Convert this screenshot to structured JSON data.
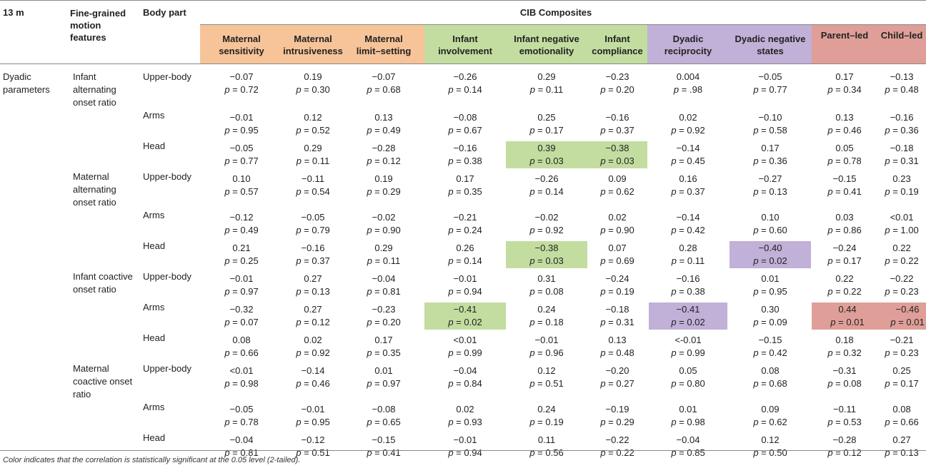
{
  "header": {
    "col_time": "13 m",
    "col_features": [
      "Fine-grained",
      "motion",
      "features"
    ],
    "col_body": "Body part",
    "group": "CIB Composites",
    "columns": [
      {
        "line1": "Maternal",
        "line2": "sensitivity",
        "color": "#f7c499"
      },
      {
        "line1": "Maternal",
        "line2": "intrusiveness",
        "color": "#f7c499"
      },
      {
        "line1": "Maternal",
        "line2": "limit–setting",
        "color": "#f7c499"
      },
      {
        "line1": "Infant",
        "line2": "involvement",
        "color": "#c3dda0"
      },
      {
        "line1": "Infant negative",
        "line2": "emotionality",
        "color": "#c3dda0"
      },
      {
        "line1": "Infant",
        "line2": "compliance",
        "color": "#c3dda0"
      },
      {
        "line1": "Dyadic",
        "line2": "reciprocity",
        "color": "#c1b0d7"
      },
      {
        "line1": "Dyadic negative",
        "line2": "states",
        "color": "#c1b0d7"
      },
      {
        "line1": "Parent–led",
        "line2": "",
        "color": "#df9f98"
      },
      {
        "line1": "Child–led",
        "line2": "",
        "color": "#df9f98"
      }
    ]
  },
  "section_label": [
    "Dyadic",
    "parameters"
  ],
  "groups": [
    {
      "label": [
        "Infant",
        "alternating",
        "onset ratio"
      ],
      "rows": [
        {
          "part": "Upper-body",
          "cells": [
            [
              "−0.07",
              "0.72"
            ],
            [
              "0.19",
              "0.30"
            ],
            [
              "−0.07",
              "0.68"
            ],
            [
              "−0.26",
              "0.14"
            ],
            [
              "0.29",
              "0.11"
            ],
            [
              "−0.23",
              "0.20"
            ],
            [
              "0.004",
              ".98"
            ],
            [
              "−0.05",
              "0.77"
            ],
            [
              "0.17",
              "0.34"
            ],
            [
              "−0.13",
              "0.48"
            ]
          ]
        },
        {
          "part": "Arms",
          "cells": [
            [
              "−0.01",
              "0.95"
            ],
            [
              "0.12",
              "0.52"
            ],
            [
              "0.13",
              "0.49"
            ],
            [
              "−0.08",
              "0.67"
            ],
            [
              "0.25",
              "0.17"
            ],
            [
              "−0.16",
              "0.37"
            ],
            [
              "0.02",
              "0.92"
            ],
            [
              "−0.10",
              "0.58"
            ],
            [
              "0.13",
              "0.46"
            ],
            [
              "−0.16",
              "0.36"
            ]
          ]
        },
        {
          "part": "Head",
          "cells": [
            [
              "−0.05",
              "0.77"
            ],
            [
              "0.29",
              "0.11"
            ],
            [
              "−0.28",
              "0.12"
            ],
            [
              "−0.16",
              "0.38"
            ],
            [
              "0.39",
              "0.03"
            ],
            [
              "−0.38",
              "0.03"
            ],
            [
              "−0.14",
              "0.45"
            ],
            [
              "0.17",
              "0.36"
            ],
            [
              "0.05",
              "0.78"
            ],
            [
              "−0.18",
              "0.31"
            ]
          ]
        }
      ]
    },
    {
      "label": [
        "Maternal",
        "alternating",
        "onset ratio"
      ],
      "rows": [
        {
          "part": "Upper-body",
          "cells": [
            [
              "0.10",
              "0.57"
            ],
            [
              "−0.11",
              "0.54"
            ],
            [
              "0.19",
              "0.29"
            ],
            [
              "0.17",
              "0.35"
            ],
            [
              "−0.26",
              "0.14"
            ],
            [
              "0.09",
              "0.62"
            ],
            [
              "0.16",
              "0.37"
            ],
            [
              "−0.27",
              "0.13"
            ],
            [
              "−0.15",
              "0.41"
            ],
            [
              "0.23",
              "0.19"
            ]
          ]
        },
        {
          "part": "Arms",
          "cells": [
            [
              "−0.12",
              "0.49"
            ],
            [
              "−0.05",
              "0.79"
            ],
            [
              "−0.02",
              "0.90"
            ],
            [
              "−0.21",
              "0.24"
            ],
            [
              "−0.02",
              "0.92"
            ],
            [
              "0.02",
              "0.90"
            ],
            [
              "−0.14",
              "0.42"
            ],
            [
              "0.10",
              "0.60"
            ],
            [
              "0.03",
              "0.86"
            ],
            [
              "<0.01",
              "1.00"
            ]
          ]
        },
        {
          "part": "Head",
          "cells": [
            [
              "0.21",
              "0.25"
            ],
            [
              "−0.16",
              "0.37"
            ],
            [
              "0.29",
              "0.11"
            ],
            [
              "0.26",
              "0.14"
            ],
            [
              "−0.38",
              "0.03"
            ],
            [
              "0.07",
              "0.69"
            ],
            [
              "0.28",
              "0.11"
            ],
            [
              "−0.40",
              "0.02"
            ],
            [
              "−0.24",
              "0.17"
            ],
            [
              "0.22",
              "0.22"
            ]
          ]
        }
      ]
    },
    {
      "label": [
        "Infant coactive",
        "onset ratio"
      ],
      "rows": [
        {
          "part": "Upper-body",
          "cells": [
            [
              "−0.01",
              "0.97"
            ],
            [
              "0.27",
              "0.13"
            ],
            [
              "−0.04",
              "0.81"
            ],
            [
              "−0.01",
              "0.94"
            ],
            [
              "0.31",
              "0.08"
            ],
            [
              "−0.24",
              "0.19"
            ],
            [
              "−0.16",
              "0.38"
            ],
            [
              "0.01",
              "0.95"
            ],
            [
              "0.22",
              "0.22"
            ],
            [
              "−0.22",
              "0.23"
            ]
          ]
        },
        {
          "part": "Arms",
          "cells": [
            [
              "−0.32",
              "0.07"
            ],
            [
              "0.27",
              "0.12"
            ],
            [
              "−0.23",
              "0.20"
            ],
            [
              "−0.41",
              "0.02"
            ],
            [
              "0.24",
              "0.18"
            ],
            [
              "−0.18",
              "0.31"
            ],
            [
              "−0.41",
              "0.02"
            ],
            [
              "0.30",
              "0.09"
            ],
            [
              "0.44",
              "0.01"
            ],
            [
              "−0.46",
              "0.01"
            ]
          ]
        },
        {
          "part": "Head",
          "cells": [
            [
              "0.08",
              "0.66"
            ],
            [
              "0.02",
              "0.92"
            ],
            [
              "0.17",
              "0.35"
            ],
            [
              "<0.01",
              "0.99"
            ],
            [
              "−0.01",
              "0.96"
            ],
            [
              "0.13",
              "0.48"
            ],
            [
              "<-0.01",
              "0.99"
            ],
            [
              "−0.15",
              "0.42"
            ],
            [
              "0.18",
              "0.32"
            ],
            [
              "−0.21",
              "0.23"
            ]
          ]
        }
      ]
    },
    {
      "label": [
        "Maternal",
        "coactive onset",
        "ratio"
      ],
      "rows": [
        {
          "part": "Upper-body",
          "cells": [
            [
              "<0.01",
              "0.98"
            ],
            [
              "−0.14",
              "0.46"
            ],
            [
              "0.01",
              "0.97"
            ],
            [
              "−0.04",
              "0.84"
            ],
            [
              "0.12",
              "0.51"
            ],
            [
              "−0.20",
              "0.27"
            ],
            [
              "0.05",
              "0.80"
            ],
            [
              "0.08",
              "0.68"
            ],
            [
              "−0.31",
              "0.08"
            ],
            [
              "0.25",
              "0.17"
            ]
          ]
        },
        {
          "part": "Arms",
          "cells": [
            [
              "−0.05",
              "0.78"
            ],
            [
              "−0.01",
              "0.95"
            ],
            [
              "−0.08",
              "0.65"
            ],
            [
              "0.02",
              "0.93"
            ],
            [
              "0.24",
              "0.19"
            ],
            [
              "−0.19",
              "0.29"
            ],
            [
              "0.01",
              "0.98"
            ],
            [
              "0.09",
              "0.62"
            ],
            [
              "−0.11",
              "0.53"
            ],
            [
              "0.08",
              "0.66"
            ]
          ]
        },
        {
          "part": "Head",
          "cells": [
            [
              "−0.04",
              "0.81"
            ],
            [
              "−0.12",
              "0.51"
            ],
            [
              "−0.15",
              "0.41"
            ],
            [
              "−0.01",
              "0.94"
            ],
            [
              "0.11",
              "0.56"
            ],
            [
              "−0.22",
              "0.22"
            ],
            [
              "−0.04",
              "0.85"
            ],
            [
              "0.12",
              "0.50"
            ],
            [
              "−0.28",
              "0.12"
            ],
            [
              "0.27",
              "0.13"
            ]
          ]
        }
      ]
    }
  ],
  "p_prefix": "p",
  "p_eq": " = ",
  "highlights": [
    {
      "group": 0,
      "row": 2,
      "col": 4,
      "color": "#c3dda0"
    },
    {
      "group": 0,
      "row": 2,
      "col": 5,
      "color": "#c3dda0"
    },
    {
      "group": 1,
      "row": 2,
      "col": 4,
      "color": "#c3dda0"
    },
    {
      "group": 1,
      "row": 2,
      "col": 7,
      "color": "#c1b0d7"
    },
    {
      "group": 2,
      "row": 1,
      "col": 3,
      "color": "#c3dda0"
    },
    {
      "group": 2,
      "row": 1,
      "col": 6,
      "color": "#c1b0d7"
    },
    {
      "group": 2,
      "row": 1,
      "col": 8,
      "color": "#df9f98"
    },
    {
      "group": 2,
      "row": 1,
      "col": 9,
      "color": "#df9f98"
    }
  ],
  "footnote": "Color indicates that the correlation is statistically significant at the 0.05 level (2-tailed)."
}
